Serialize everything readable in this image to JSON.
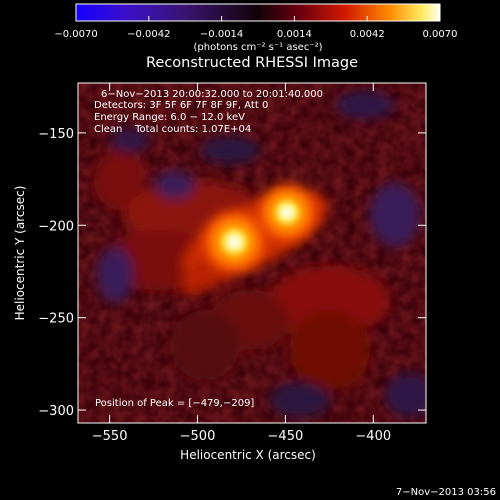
{
  "chart_data": {
    "type": "heatmap",
    "title": "Reconstructed RHESSI Image",
    "xlabel": "Heliocentric X (arcsec)",
    "ylabel": "Heliocentric Y (arcsec)",
    "xlim": [
      -568,
      -370
    ],
    "ylim": [
      -307,
      -123
    ],
    "x_ticks": [
      {
        "value": -550,
        "label": "−550"
      },
      {
        "value": -500,
        "label": "−500"
      },
      {
        "value": -450,
        "label": "−450"
      },
      {
        "value": -400,
        "label": "−400"
      }
    ],
    "y_ticks": [
      {
        "value": -150,
        "label": "−150"
      },
      {
        "value": -200,
        "label": "−200"
      },
      {
        "value": -250,
        "label": "−250"
      },
      {
        "value": -300,
        "label": "−300"
      }
    ],
    "colorbar": {
      "range": [
        -0.007,
        0.007
      ],
      "units_label": "(photons cm⁻² s⁻¹ asec⁻²)",
      "ticks": [
        {
          "value": -0.007,
          "label": "−0.0070"
        },
        {
          "value": -0.0042,
          "label": "−0.0042"
        },
        {
          "value": -0.0014,
          "label": "−0.0014"
        },
        {
          "value": 0.0014,
          "label": "0.0014"
        },
        {
          "value": 0.0042,
          "label": "0.0042"
        },
        {
          "value": 0.007,
          "label": "0.0070"
        }
      ]
    },
    "info_lines": [
      "6−Nov−2013 20:00:32.000 to 20:01:40.000",
      "Detectors: 3F 5F 6F 7F 8F 9F, Att 0",
      "Energy Range: 6.0 − 12.0 keV",
      "Clean    Total counts: 1.07E+04"
    ],
    "peak_label": "Position of Peak = [−479,−209]",
    "sources": [
      {
        "x": -479,
        "y": -209,
        "peak": 0.007
      },
      {
        "x": -449,
        "y": -193,
        "peak": 0.0065
      }
    ]
  },
  "footer": {
    "timestamp": "7−Nov−2013 03:56"
  }
}
